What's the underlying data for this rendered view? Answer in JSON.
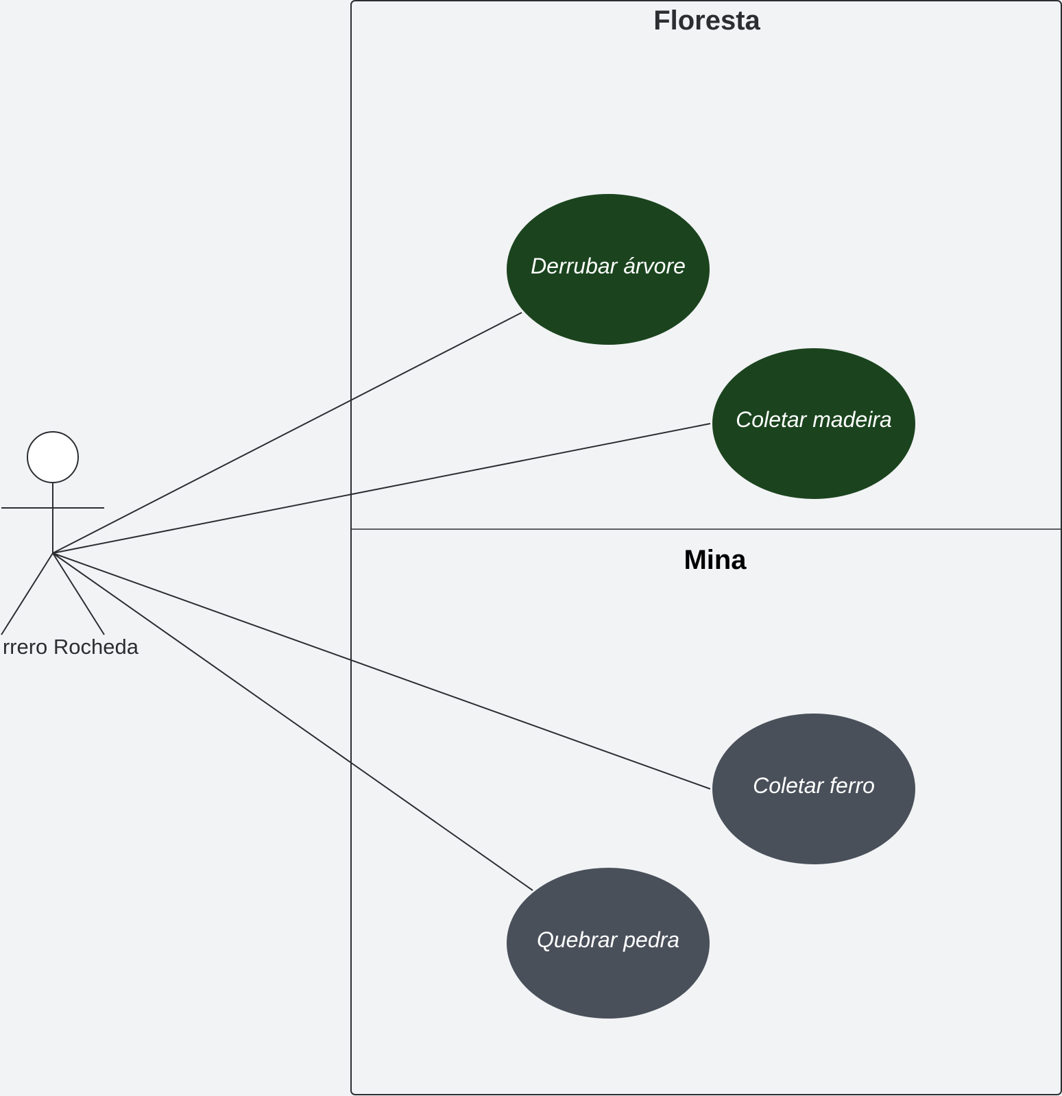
{
  "diagram": {
    "colors": {
      "background": "#f2f3f5",
      "stroke": "#2b2d31",
      "floresta_fill": "#1b441e",
      "mina_fill": "#4a505a",
      "usecase_text": "#ffffff",
      "floresta_title": "#2b2d31",
      "mina_title": "#000000"
    },
    "boundaries": {
      "floresta": {
        "title": "Floresta"
      },
      "mina": {
        "title": "Mina"
      }
    },
    "actor": {
      "name": "rrero Rocheda"
    },
    "use_cases": {
      "derrubar": "Derrubar árvore",
      "madeira": "Coletar madeira",
      "ferro": "Coletar ferro",
      "pedra": "Quebrar pedra"
    },
    "associations": [
      {
        "from": "actor",
        "to": "Derrubar árvore"
      },
      {
        "from": "actor",
        "to": "Coletar madeira"
      },
      {
        "from": "actor",
        "to": "Coletar ferro"
      },
      {
        "from": "actor",
        "to": "Quebrar pedra"
      }
    ]
  }
}
